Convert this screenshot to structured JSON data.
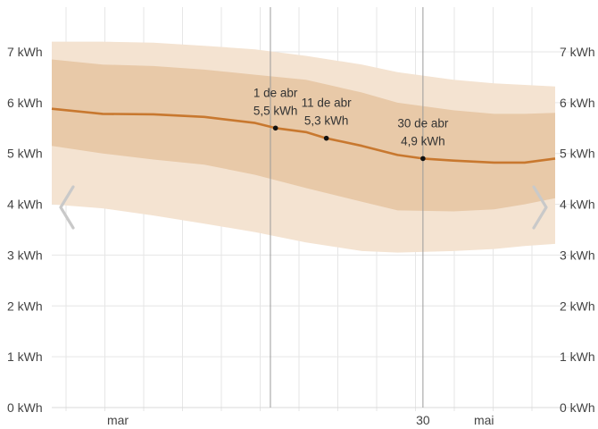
{
  "chart_data": {
    "type": "area",
    "title": "",
    "xlabel": "",
    "ylabel": "",
    "x_range": [
      "2025-02-16",
      "2025-05-26"
    ],
    "ylim": [
      0,
      7
    ],
    "yticks": [
      0,
      1,
      2,
      3,
      4,
      5,
      6,
      7
    ],
    "ytick_unit": "kWh",
    "xtick_labels": [
      {
        "label": "mar",
        "date": "2025-03-01"
      },
      {
        "label": "30",
        "date": "2025-04-30"
      },
      {
        "label": "mai",
        "date": "2025-05-12"
      }
    ],
    "grid": true,
    "series": [
      {
        "role": "median",
        "color": "#C8782F",
        "points": [
          {
            "x": "2025-02-16",
            "y": 5.88
          },
          {
            "x": "2025-02-26",
            "y": 5.78
          },
          {
            "x": "2025-03-08",
            "y": 5.77
          },
          {
            "x": "2025-03-18",
            "y": 5.72
          },
          {
            "x": "2025-03-28",
            "y": 5.6
          },
          {
            "x": "2025-04-01",
            "y": 5.5
          },
          {
            "x": "2025-04-07",
            "y": 5.42
          },
          {
            "x": "2025-04-11",
            "y": 5.3
          },
          {
            "x": "2025-04-18",
            "y": 5.15
          },
          {
            "x": "2025-04-25",
            "y": 4.97
          },
          {
            "x": "2025-04-30",
            "y": 4.9
          },
          {
            "x": "2025-05-06",
            "y": 4.86
          },
          {
            "x": "2025-05-14",
            "y": 4.82
          },
          {
            "x": "2025-05-20",
            "y": 4.82
          },
          {
            "x": "2025-05-26",
            "y": 4.9
          }
        ]
      },
      {
        "role": "inner-band",
        "color": "#E8C9A8",
        "points": [
          {
            "x": "2025-02-16",
            "y_low": 5.15,
            "y_high": 6.85
          },
          {
            "x": "2025-02-26",
            "y_low": 5.0,
            "y_high": 6.75
          },
          {
            "x": "2025-03-08",
            "y_low": 4.88,
            "y_high": 6.72
          },
          {
            "x": "2025-03-18",
            "y_low": 4.78,
            "y_high": 6.65
          },
          {
            "x": "2025-03-28",
            "y_low": 4.58,
            "y_high": 6.55
          },
          {
            "x": "2025-04-07",
            "y_low": 4.32,
            "y_high": 6.45
          },
          {
            "x": "2025-04-18",
            "y_low": 4.05,
            "y_high": 6.2
          },
          {
            "x": "2025-04-25",
            "y_low": 3.88,
            "y_high": 6.0
          },
          {
            "x": "2025-05-06",
            "y_low": 3.86,
            "y_high": 5.85
          },
          {
            "x": "2025-05-14",
            "y_low": 3.9,
            "y_high": 5.78
          },
          {
            "x": "2025-05-20",
            "y_low": 4.0,
            "y_high": 5.78
          },
          {
            "x": "2025-05-26",
            "y_low": 4.12,
            "y_high": 5.8
          }
        ]
      },
      {
        "role": "outer-band",
        "color": "#F4E3D1",
        "points": [
          {
            "x": "2025-02-16",
            "y_low": 4.0,
            "y_high": 7.2
          },
          {
            "x": "2025-02-26",
            "y_low": 3.92,
            "y_high": 7.2
          },
          {
            "x": "2025-03-08",
            "y_low": 3.78,
            "y_high": 7.18
          },
          {
            "x": "2025-03-18",
            "y_low": 3.62,
            "y_high": 7.12
          },
          {
            "x": "2025-03-28",
            "y_low": 3.45,
            "y_high": 7.05
          },
          {
            "x": "2025-04-07",
            "y_low": 3.25,
            "y_high": 6.92
          },
          {
            "x": "2025-04-18",
            "y_low": 3.08,
            "y_high": 6.75
          },
          {
            "x": "2025-04-25",
            "y_low": 3.05,
            "y_high": 6.6
          },
          {
            "x": "2025-05-06",
            "y_low": 3.08,
            "y_high": 6.45
          },
          {
            "x": "2025-05-14",
            "y_low": 3.12,
            "y_high": 6.38
          },
          {
            "x": "2025-05-20",
            "y_low": 3.18,
            "y_high": 6.35
          },
          {
            "x": "2025-05-26",
            "y_low": 3.22,
            "y_high": 6.32
          }
        ]
      }
    ],
    "annotations": [
      {
        "x": "2025-04-01",
        "y": 5.5,
        "date_label": "1 de abr",
        "value_label": "5,5 kWh"
      },
      {
        "x": "2025-04-11",
        "y": 5.3,
        "date_label": "11 de abr",
        "value_label": "5,3 kWh"
      },
      {
        "x": "2025-04-30",
        "y": 4.9,
        "date_label": "30 de abr",
        "value_label": "4,9 kWh"
      }
    ],
    "markers": [
      {
        "x": "2025-03-31",
        "color": "#9A9A9A"
      },
      {
        "x": "2025-04-30",
        "color": "#9A9A9A"
      }
    ],
    "colors": {
      "median": "#C8782F",
      "inner_band": "#E8C9A8",
      "outer_band": "#F4E3D1",
      "grid": "#E6E6E6",
      "arrow": "#C9C9C9"
    }
  },
  "navigation": {
    "prev_icon": "chevron-left-icon",
    "next_icon": "chevron-right-icon"
  }
}
